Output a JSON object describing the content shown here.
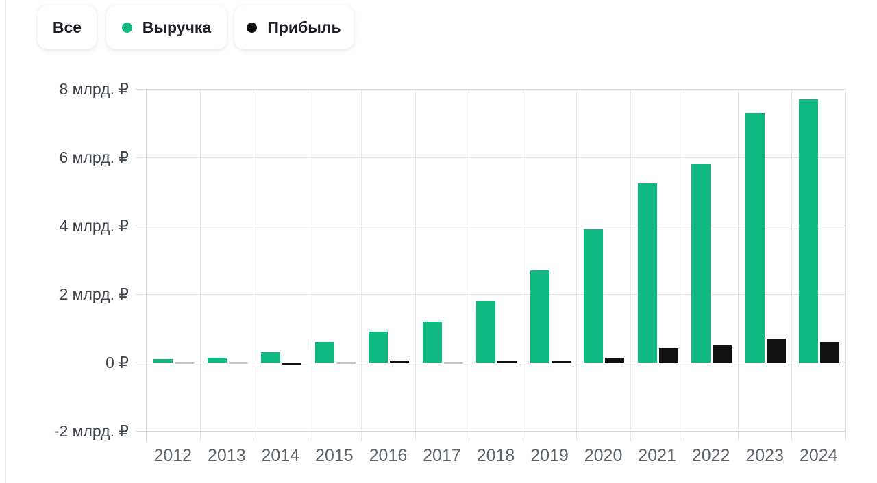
{
  "legend": {
    "all_label": "Все"
  },
  "colors": {
    "revenue": "#10b981",
    "profit": "#111111",
    "muted_zero_bar": "#cccccc",
    "grid": "#e3e3e3",
    "grid_vertical": "#e8e8e8",
    "axis_line": "#d7d7d7",
    "y_label_text": "#3f434a",
    "x_label_text": "#5e6368",
    "legend_text": "#1d1f24",
    "background": "#ffffff"
  },
  "chart_data": {
    "type": "bar",
    "title": "",
    "xlabel": "",
    "ylabel": "",
    "categories": [
      "2012",
      "2013",
      "2014",
      "2015",
      "2016",
      "2017",
      "2018",
      "2019",
      "2020",
      "2021",
      "2022",
      "2023",
      "2024"
    ],
    "series": [
      {
        "name": "Выручка",
        "color": "#10b981",
        "values": [
          0.1,
          0.15,
          0.3,
          0.6,
          0.9,
          1.2,
          1.8,
          2.7,
          3.9,
          5.25,
          5.8,
          7.3,
          7.7
        ]
      },
      {
        "name": "Прибыль",
        "color": "#111111",
        "values": [
          -0.01,
          0.02,
          -0.07,
          0.0,
          0.06,
          0.0,
          0.02,
          0.02,
          0.15,
          0.45,
          0.5,
          0.7,
          0.6
        ],
        "muted_zero_indices": [
          0,
          1,
          3,
          5
        ],
        "muted_color": "#cccccc"
      }
    ],
    "y_ticks": [
      {
        "value": 8,
        "label": "8 млрд. ₽"
      },
      {
        "value": 6,
        "label": "6 млрд. ₽"
      },
      {
        "value": 4,
        "label": "4 млрд. ₽"
      },
      {
        "value": 2,
        "label": "2 млрд. ₽"
      },
      {
        "value": 0,
        "label": "0 ₽"
      },
      {
        "value": -2,
        "label": "-2 млрд. ₽"
      }
    ],
    "ylim": [
      -2,
      8
    ],
    "unit": "млрд. ₽",
    "grid": true,
    "legend_position": "top"
  }
}
